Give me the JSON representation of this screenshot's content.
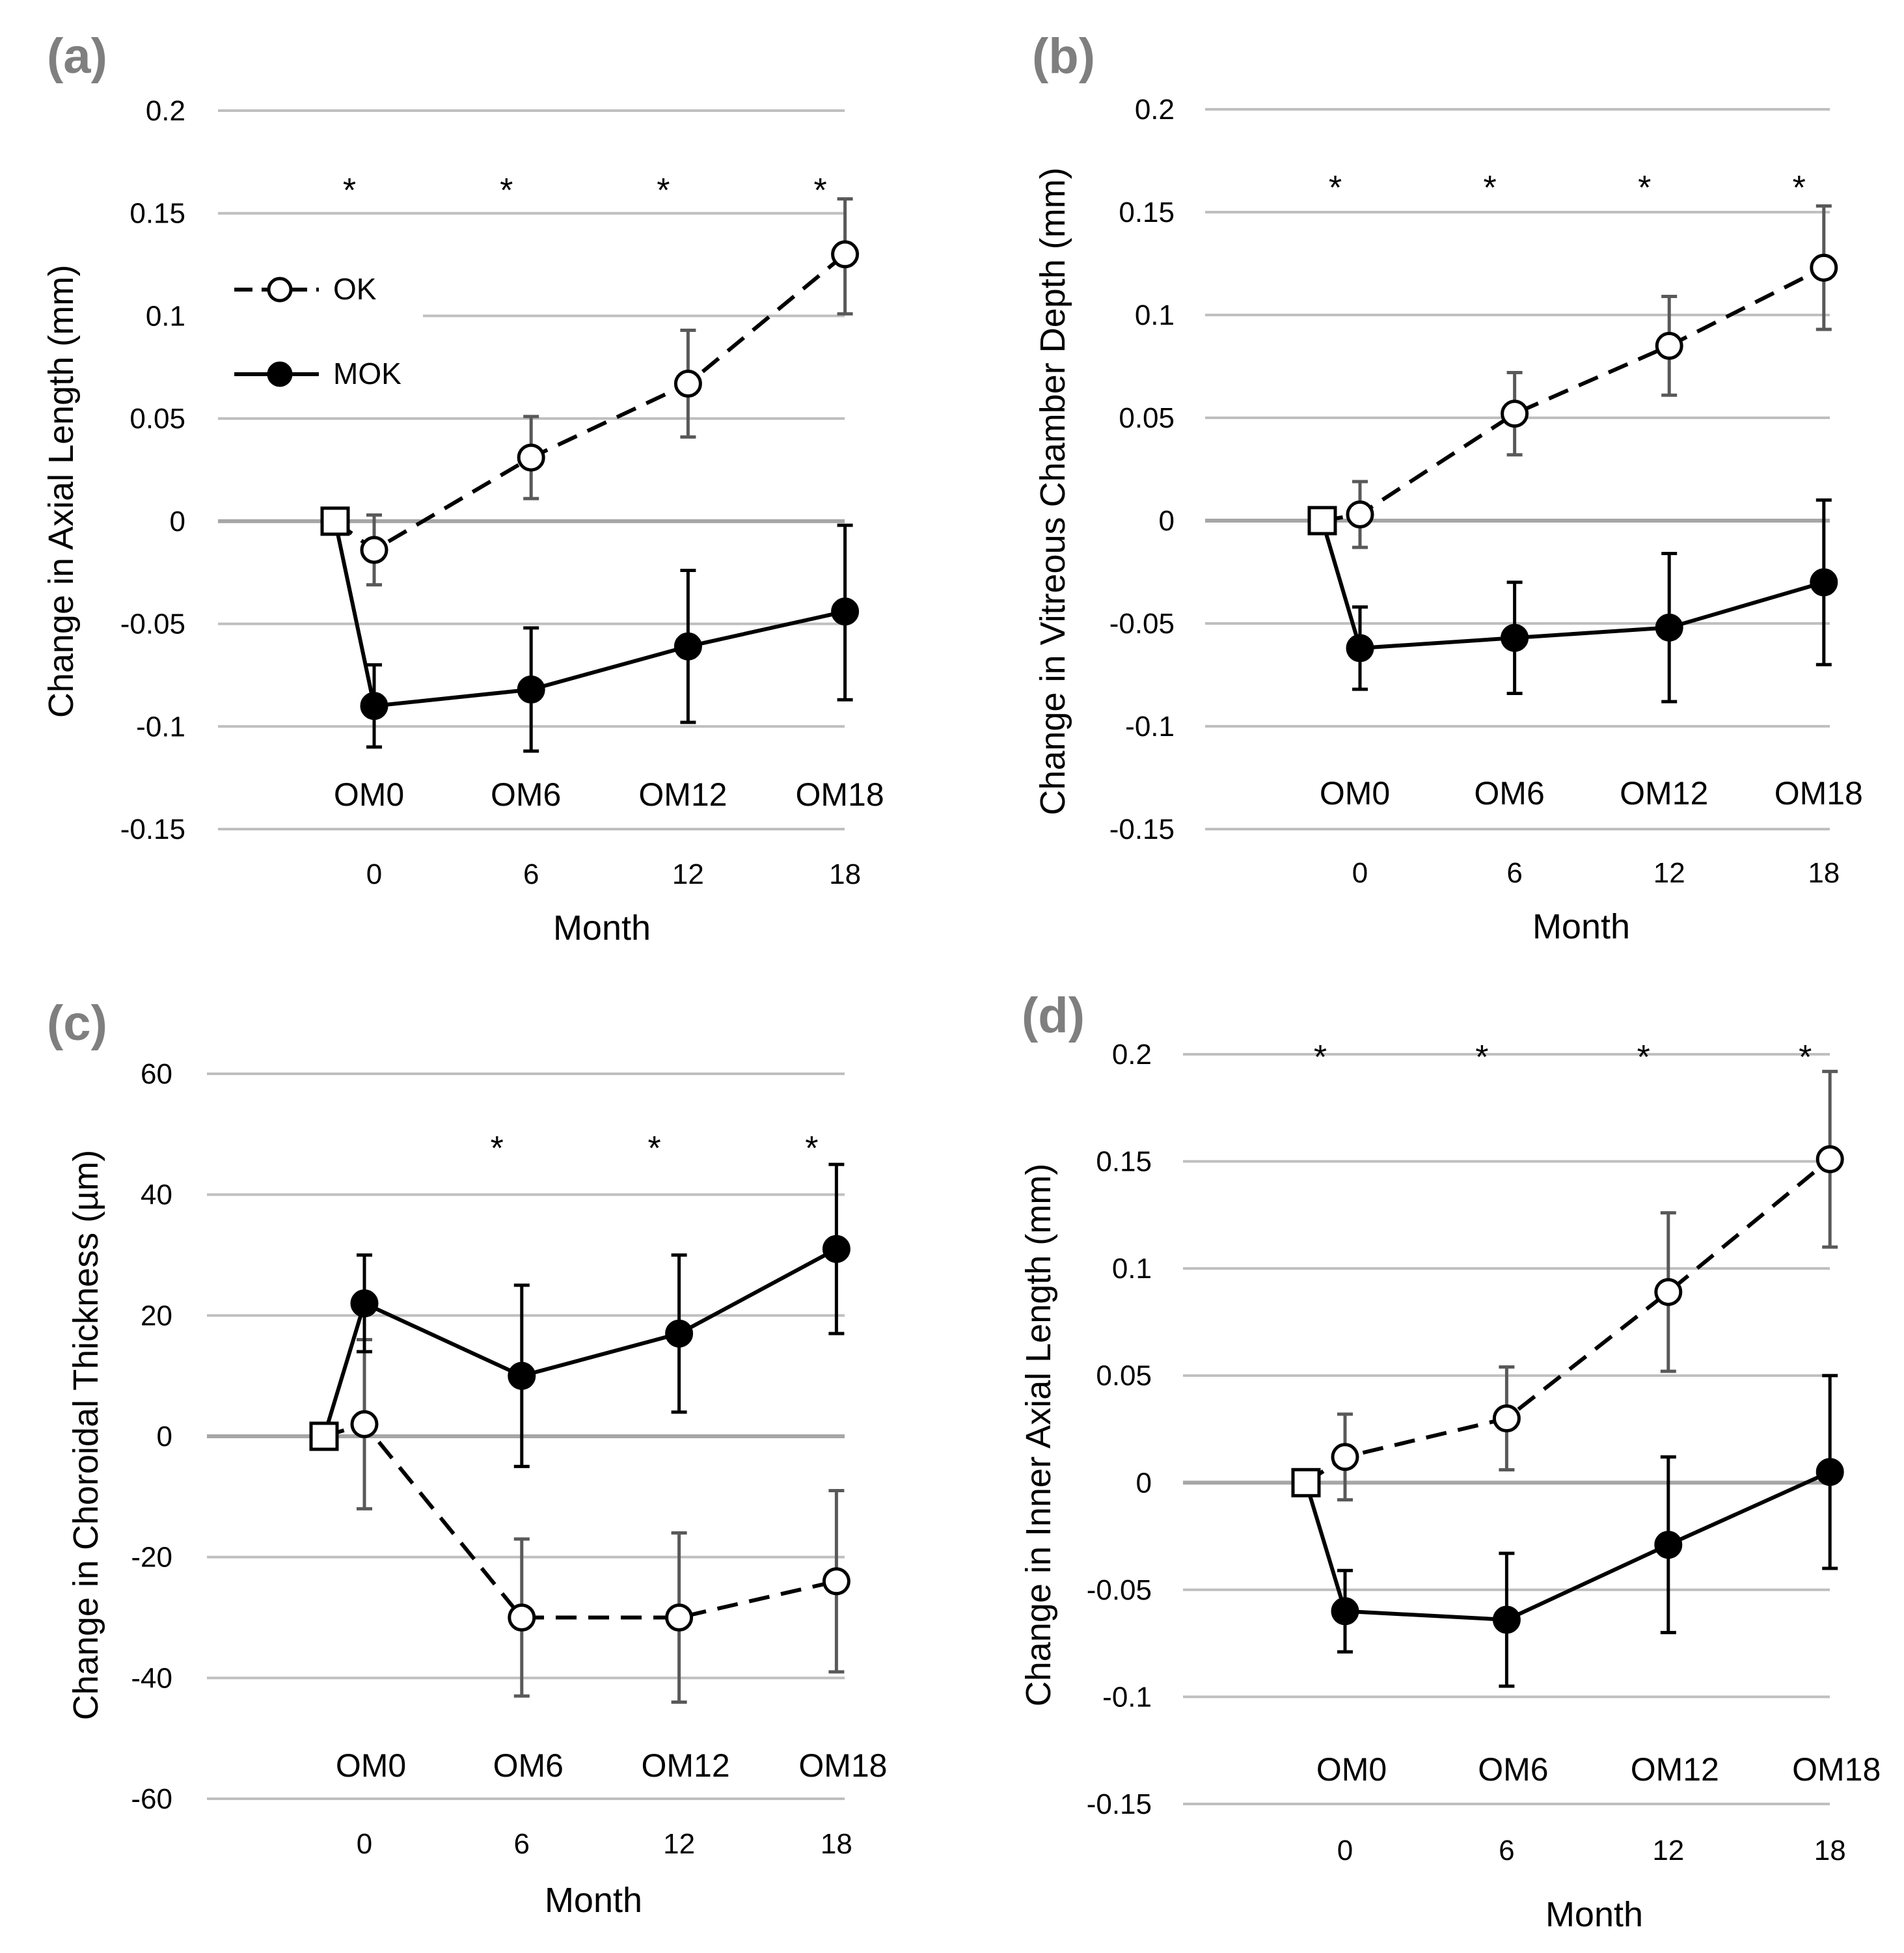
{
  "legend": {
    "ok_label": "OK",
    "mok_label": "MOK"
  },
  "colors": {
    "ok_error_bar": "#595959",
    "mok_error_bar": "#000000",
    "grid": "#bfbfbf",
    "panel_label": "#7f7f7f"
  },
  "chart_data": [
    {
      "id": "a",
      "panel_label": "(a)",
      "type": "line",
      "ylabel": "Change in Axial Length (mm)",
      "xlabel": "Month",
      "ylim": [
        -0.15,
        0.2
      ],
      "ytick_values": [
        0.2,
        0.15,
        0.1,
        0.05,
        0,
        -0.05,
        -0.1,
        -0.15
      ],
      "ytick_labels": [
        "0.2",
        "0.15",
        "0.1",
        "0.05",
        "0",
        "-0.05",
        "-0.1",
        "-0.15"
      ],
      "x": [
        0,
        6,
        12,
        18
      ],
      "xtick_labels": [
        "0",
        "6",
        "12",
        "18"
      ],
      "om_labels": [
        "OM0",
        "OM6",
        "OM12",
        "OM18"
      ],
      "significance": [
        "*",
        "*",
        "*",
        "*"
      ],
      "baseline": {
        "month": -1.5,
        "value": 0
      },
      "series": [
        {
          "name": "OK",
          "style": "dashed-open",
          "values": [
            -0.014,
            0.031,
            0.067,
            0.13
          ],
          "err_low": [
            -0.031,
            0.011,
            0.041,
            0.101
          ],
          "err_high": [
            0.003,
            0.051,
            0.093,
            0.157
          ]
        },
        {
          "name": "MOK",
          "style": "solid-filled",
          "values": [
            -0.09,
            -0.082,
            -0.061,
            -0.044
          ],
          "err_low": [
            -0.11,
            -0.112,
            -0.098,
            -0.087
          ],
          "err_high": [
            -0.07,
            -0.052,
            -0.024,
            -0.002
          ]
        }
      ],
      "legend_visible": true
    },
    {
      "id": "b",
      "panel_label": "(b)",
      "type": "line",
      "ylabel": "Change in Vitreous Chamber Depth  (mm)",
      "xlabel": "Month",
      "ylim": [
        -0.15,
        0.2
      ],
      "ytick_values": [
        0.2,
        0.15,
        0.1,
        0.05,
        0,
        -0.05,
        -0.1,
        -0.15
      ],
      "ytick_labels": [
        "0.2",
        "0.15",
        "0.1",
        "0.05",
        "0",
        "-0.05",
        "-0.1",
        "-0.15"
      ],
      "x": [
        0,
        6,
        12,
        18
      ],
      "xtick_labels": [
        "0",
        "6",
        "12",
        "18"
      ],
      "om_labels": [
        "OM0",
        "OM6",
        "OM12",
        "OM18"
      ],
      "significance": [
        "*",
        "*",
        "*",
        "*"
      ],
      "baseline": {
        "month": -1.5,
        "value": 0
      },
      "series": [
        {
          "name": "OK",
          "style": "dashed-open",
          "values": [
            0.003,
            0.052,
            0.085,
            0.123
          ],
          "err_low": [
            -0.013,
            0.032,
            0.061,
            0.093
          ],
          "err_high": [
            0.019,
            0.072,
            0.109,
            0.153
          ]
        },
        {
          "name": "MOK",
          "style": "solid-filled",
          "values": [
            -0.062,
            -0.057,
            -0.052,
            -0.03
          ],
          "err_low": [
            -0.082,
            -0.084,
            -0.088,
            -0.07
          ],
          "err_high": [
            -0.042,
            -0.03,
            -0.016,
            0.01
          ]
        }
      ],
      "legend_visible": false
    },
    {
      "id": "c",
      "panel_label": "(c)",
      "type": "line",
      "ylabel": "Change in Choroidal Thickness (µm)",
      "xlabel": "Month",
      "ylim": [
        -60,
        60
      ],
      "ytick_values": [
        60,
        40,
        20,
        0,
        -20,
        -40,
        -60
      ],
      "ytick_labels": [
        "60",
        "40",
        "20",
        "0",
        "-20",
        "-40",
        "-60"
      ],
      "x": [
        0,
        6,
        12,
        18
      ],
      "xtick_labels": [
        "0",
        "6",
        "12",
        "18"
      ],
      "om_labels": [
        "OM0",
        "OM6",
        "OM12",
        "OM18"
      ],
      "significance": [
        "",
        "*",
        "*",
        "*"
      ],
      "baseline": {
        "month": -1.5,
        "value": 0
      },
      "series": [
        {
          "name": "OK",
          "style": "dashed-open",
          "values": [
            2,
            -30,
            -30,
            -24
          ],
          "err_low": [
            -12,
            -43,
            -44,
            -39
          ],
          "err_high": [
            16,
            -17,
            -16,
            -9
          ]
        },
        {
          "name": "MOK",
          "style": "solid-filled",
          "values": [
            22,
            10,
            17,
            31
          ],
          "err_low": [
            14,
            -5,
            4,
            17
          ],
          "err_high": [
            30,
            25,
            30,
            45
          ]
        }
      ],
      "legend_visible": false
    },
    {
      "id": "d",
      "panel_label": "(d)",
      "type": "line",
      "ylabel": "Change in Inner Axial Length (mm)",
      "xlabel": "Month",
      "ylim": [
        -0.15,
        0.2
      ],
      "ytick_values": [
        0.2,
        0.15,
        0.1,
        0.05,
        0,
        -0.05,
        -0.1,
        -0.15
      ],
      "ytick_labels": [
        "0.2",
        "0.15",
        "0.1",
        "0.05",
        "0",
        "-0.05",
        "-0.1",
        "-0.15"
      ],
      "x": [
        0,
        6,
        12,
        18
      ],
      "xtick_labels": [
        "0",
        "6",
        "12",
        "18"
      ],
      "om_labels": [
        "OM0",
        "OM6",
        "OM12",
        "OM18"
      ],
      "significance": [
        "*",
        "*",
        "*",
        "*"
      ],
      "baseline": {
        "month": -1.5,
        "value": 0
      },
      "series": [
        {
          "name": "OK",
          "style": "dashed-open",
          "values": [
            0.012,
            0.03,
            0.089,
            0.151
          ],
          "err_low": [
            -0.008,
            0.006,
            0.052,
            0.11
          ],
          "err_high": [
            0.032,
            0.054,
            0.126,
            0.192
          ]
        },
        {
          "name": "MOK",
          "style": "solid-filled",
          "values": [
            -0.06,
            -0.064,
            -0.029,
            0.005
          ],
          "err_low": [
            -0.079,
            -0.095,
            -0.07,
            -0.04
          ],
          "err_high": [
            -0.041,
            -0.033,
            0.012,
            0.05
          ]
        }
      ],
      "legend_visible": false
    }
  ]
}
